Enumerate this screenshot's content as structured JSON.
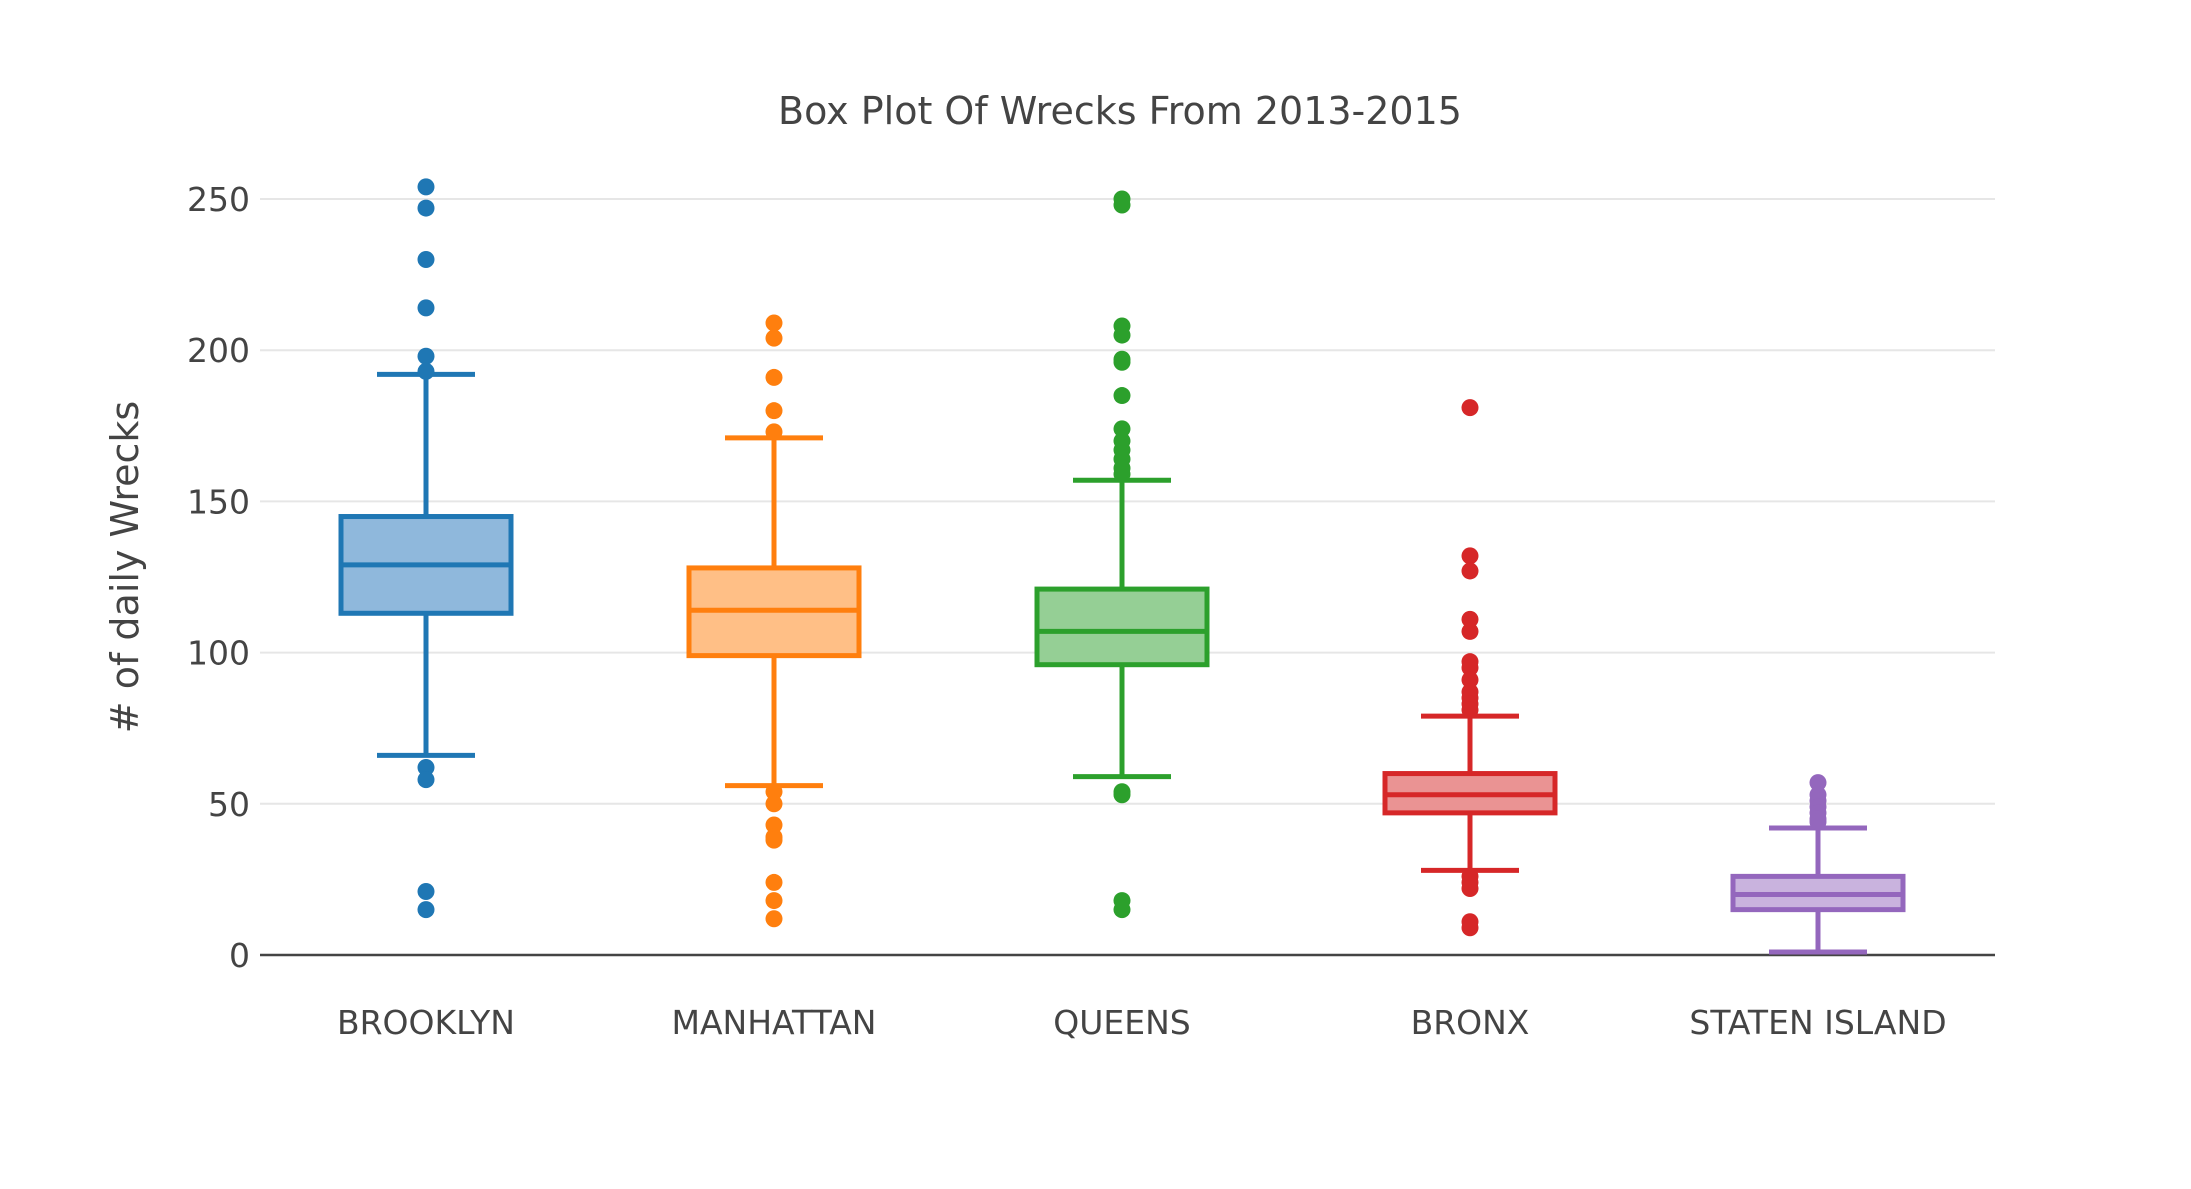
{
  "chart_data": {
    "type": "box",
    "title": "Box Plot Of Wrecks From 2013-2015",
    "xlabel": "",
    "ylabel": "# of daily Wrecks",
    "ylim": [
      0,
      260
    ],
    "yticks": [
      0,
      50,
      100,
      150,
      200,
      250
    ],
    "grid": true,
    "categories": [
      "BROOKLYN",
      "MANHATTAN",
      "QUEENS",
      "BRONX",
      "STATEN ISLAND"
    ],
    "series": [
      {
        "category": "BROOKLYN",
        "color": "#1f77b4",
        "fill": "#8fb8dc",
        "whisker_low": 66,
        "q1": 113,
        "median": 129,
        "q3": 145,
        "whisker_high": 192,
        "outliers": [
          254,
          247,
          230,
          214,
          198,
          193,
          62,
          58,
          21,
          15
        ]
      },
      {
        "category": "MANHATTAN",
        "color": "#ff7f0e",
        "fill": "#ffbf86",
        "whisker_low": 56,
        "q1": 99,
        "median": 114,
        "q3": 128,
        "whisker_high": 171,
        "outliers": [
          209,
          204,
          191,
          180,
          173,
          54,
          50,
          43,
          39,
          38,
          24,
          18,
          12
        ]
      },
      {
        "category": "QUEENS",
        "color": "#2ca02c",
        "fill": "#95cf95",
        "whisker_low": 59,
        "q1": 96,
        "median": 107,
        "q3": 121,
        "whisker_high": 157,
        "outliers": [
          250,
          248,
          208,
          205,
          197,
          196,
          185,
          174,
          170,
          167,
          164,
          161,
          159,
          54,
          53,
          18,
          15
        ]
      },
      {
        "category": "BRONX",
        "color": "#d62728",
        "fill": "#ea9393",
        "whisker_low": 28,
        "q1": 47,
        "median": 53,
        "q3": 60,
        "whisker_high": 79,
        "outliers": [
          181,
          132,
          127,
          111,
          107,
          97,
          95,
          91,
          87,
          85,
          83,
          81,
          26,
          24,
          22,
          11,
          9
        ]
      },
      {
        "category": "STATEN ISLAND",
        "color": "#9467bd",
        "fill": "#c9b3de",
        "whisker_low": 1,
        "q1": 15,
        "median": 20,
        "q3": 26,
        "whisker_high": 42,
        "outliers": [
          57,
          53,
          51,
          49,
          47,
          45,
          44
        ]
      }
    ]
  }
}
